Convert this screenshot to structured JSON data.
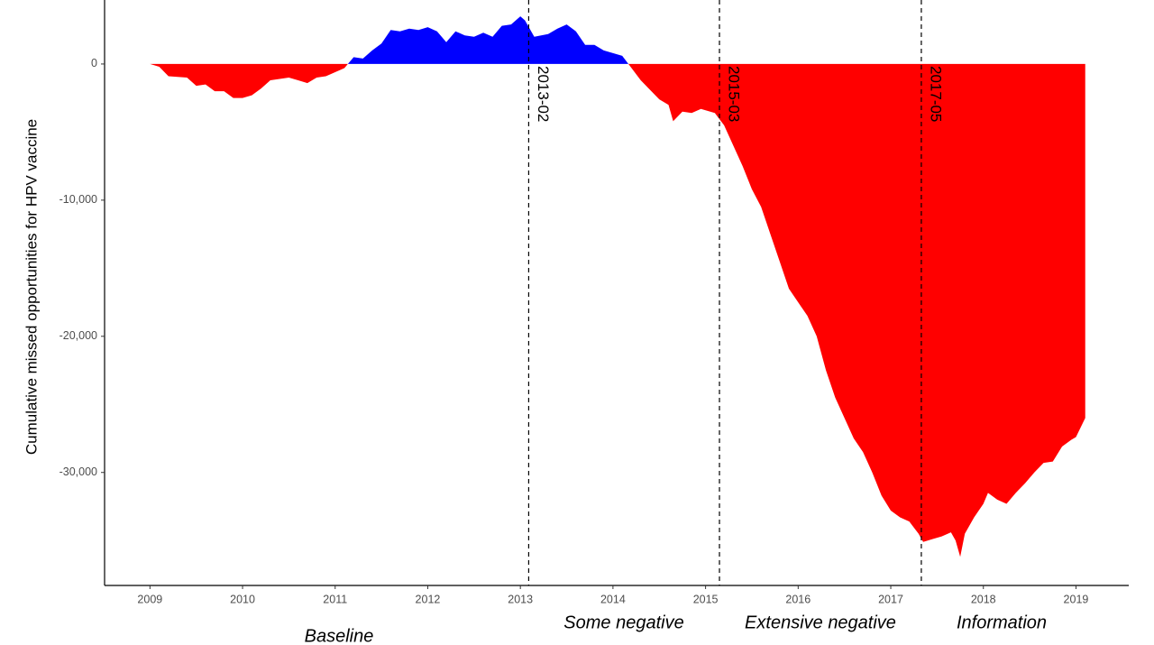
{
  "chart_data": {
    "type": "area",
    "y_label": "Cumulative missed opportunities for HPV vaccine",
    "positive_color": "#0000ff",
    "negative_color": "#ff0000",
    "x": [
      2009.0,
      2009.1,
      2009.2,
      2009.4,
      2009.5,
      2009.6,
      2009.7,
      2009.8,
      2009.9,
      2010.0,
      2010.1,
      2010.2,
      2010.3,
      2010.5,
      2010.6,
      2010.7,
      2010.8,
      2010.9,
      2011.0,
      2011.1,
      2011.2,
      2011.3,
      2011.4,
      2011.5,
      2011.6,
      2011.7,
      2011.8,
      2011.9,
      2012.0,
      2012.1,
      2012.2,
      2012.3,
      2012.4,
      2012.5,
      2012.6,
      2012.7,
      2012.8,
      2012.9,
      2013.0,
      2013.05,
      2013.15,
      2013.3,
      2013.4,
      2013.5,
      2013.6,
      2013.7,
      2013.8,
      2013.9,
      2014.0,
      2014.1,
      2014.3,
      2014.5,
      2014.6,
      2014.65,
      2014.75,
      2014.85,
      2014.95,
      2015.1,
      2015.2,
      2015.3,
      2015.4,
      2015.5,
      2015.6,
      2015.7,
      2015.8,
      2015.9,
      2016.0,
      2016.1,
      2016.2,
      2016.3,
      2016.4,
      2016.5,
      2016.6,
      2016.7,
      2016.8,
      2016.9,
      2017.0,
      2017.1,
      2017.2,
      2017.3,
      2017.35,
      2017.45,
      2017.55,
      2017.65,
      2017.7,
      2017.75,
      2017.8,
      2017.9,
      2018.0,
      2018.05,
      2018.15,
      2018.25,
      2018.35,
      2018.45,
      2018.55,
      2018.65,
      2018.75,
      2018.85,
      2018.95,
      2019.0,
      2019.1
    ],
    "values": [
      0,
      -200,
      -900,
      -1000,
      -1600,
      -1500,
      -2000,
      -2000,
      -2500,
      -2500,
      -2300,
      -1800,
      -1200,
      -1000,
      -1200,
      -1400,
      -1000,
      -900,
      -600,
      -300,
      500,
      400,
      1000,
      1500,
      2500,
      2400,
      2600,
      2500,
      2700,
      2400,
      1600,
      2400,
      2100,
      2000,
      2300,
      2000,
      2800,
      2900,
      3500,
      3200,
      2000,
      2200,
      2600,
      2900,
      2400,
      1400,
      1400,
      1000,
      800,
      600,
      -1200,
      -2600,
      -3000,
      -4200,
      -3500,
      -3600,
      -3300,
      -3600,
      -4500,
      -6000,
      -7500,
      -9200,
      -10500,
      -12500,
      -14500,
      -16500,
      -17500,
      -18500,
      -20000,
      -22500,
      -24500,
      -26000,
      -27500,
      -28500,
      -30000,
      -31700,
      -32800,
      -33300,
      -33600,
      -34500,
      -35100,
      -34900,
      -34700,
      -34400,
      -35000,
      -36200,
      -34500,
      -33300,
      -32300,
      -31500,
      -32000,
      -32300,
      -31500,
      -30800,
      -30000,
      -29300,
      -29200,
      -28100,
      -27600,
      -27400,
      -26000
    ],
    "xlim": [
      2008.51,
      2019.57
    ],
    "ylim": [
      -38300,
      4700
    ],
    "xticks": [
      2009,
      2010,
      2011,
      2012,
      2013,
      2014,
      2015,
      2016,
      2017,
      2018,
      2019
    ],
    "yticks": [
      {
        "value": -30000,
        "label": "-30,000"
      },
      {
        "value": -20000,
        "label": "-20,000"
      },
      {
        "value": -10000,
        "label": "-10,000"
      },
      0
    ],
    "vlines": [
      {
        "x": 2013.09,
        "label": "2013-02"
      },
      {
        "x": 2015.15,
        "label": "2015-03"
      },
      {
        "x": 2017.33,
        "label": "2017-05"
      }
    ],
    "phases": [
      "Baseline",
      "Some negative",
      "Extensive negative",
      "Information"
    ]
  }
}
